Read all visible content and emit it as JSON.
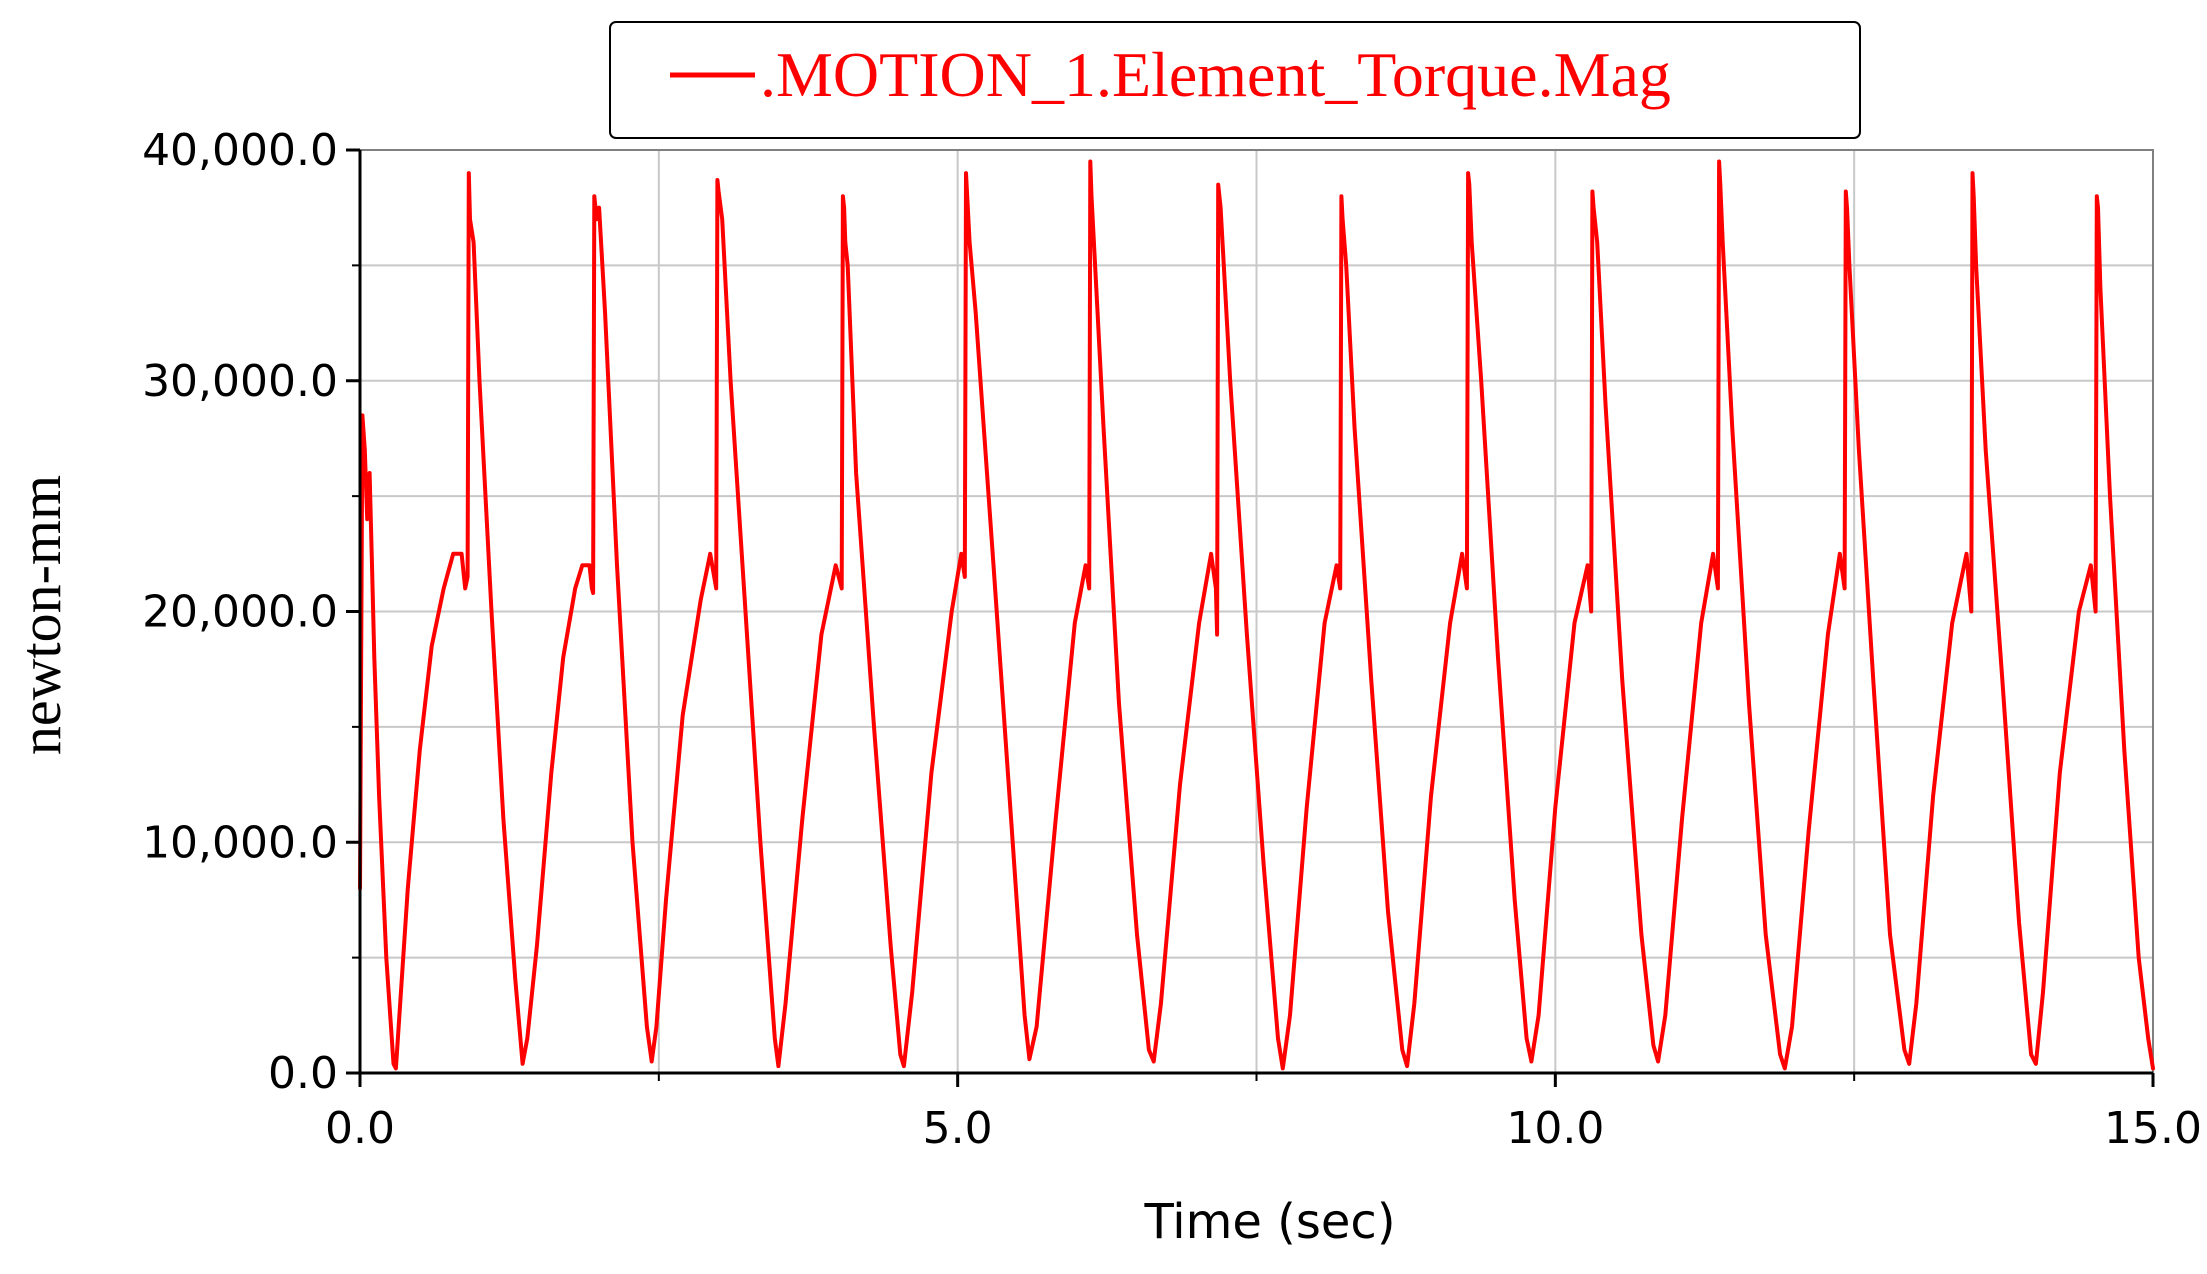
{
  "chart_data": {
    "type": "line",
    "legend": {
      "position": "top",
      "entries": [
        ".MOTION_1.Element_Torque.Mag"
      ]
    },
    "xlabel": "Time (sec)",
    "ylabel": "newton-mm",
    "xlim": [
      0,
      15
    ],
    "ylim": [
      0,
      40000
    ],
    "grid": true,
    "colors": {
      "series": "#ff0000",
      "grid": "#c8c8c8",
      "axis": "#000000"
    },
    "x_ticks": [
      {
        "value": 0,
        "label": "0.0"
      },
      {
        "value": 5,
        "label": "5.0"
      },
      {
        "value": 10,
        "label": "10.0"
      },
      {
        "value": 15,
        "label": "15.0"
      }
    ],
    "x_minor_grid": [
      2.5,
      7.5,
      12.5
    ],
    "y_ticks": [
      {
        "value": 0,
        "label": "0.0"
      },
      {
        "value": 10000,
        "label": "10,000.0"
      },
      {
        "value": 20000,
        "label": "20,000.0"
      },
      {
        "value": 30000,
        "label": "30,000.0"
      },
      {
        "value": 40000,
        "label": "40,000.0"
      }
    ],
    "y_minor_grid": [
      5000,
      15000,
      25000,
      35000
    ],
    "series": [
      {
        "name": ".MOTION_1.Element_Torque.Mag",
        "x": [
          0.0,
          0.02,
          0.04,
          0.06,
          0.08,
          0.1,
          0.12,
          0.16,
          0.22,
          0.28,
          0.3,
          0.33,
          0.4,
          0.5,
          0.6,
          0.7,
          0.78,
          0.85,
          0.88,
          0.9,
          0.91,
          0.92,
          0.95,
          1.0,
          1.1,
          1.2,
          1.3,
          1.36,
          1.4,
          1.48,
          1.6,
          1.7,
          1.8,
          1.86,
          1.92,
          1.94,
          1.95,
          1.96,
          1.98,
          2.0,
          2.05,
          2.15,
          2.28,
          2.4,
          2.44,
          2.48,
          2.56,
          2.7,
          2.85,
          2.93,
          2.98,
          2.99,
          3.0,
          3.03,
          3.1,
          3.2,
          3.35,
          3.47,
          3.5,
          3.56,
          3.7,
          3.86,
          3.98,
          4.03,
          4.04,
          4.05,
          4.06,
          4.08,
          4.15,
          4.3,
          4.44,
          4.52,
          4.55,
          4.62,
          4.78,
          4.95,
          5.03,
          5.06,
          5.07,
          5.08,
          5.1,
          5.15,
          5.3,
          5.46,
          5.56,
          5.6,
          5.66,
          5.82,
          5.98,
          6.07,
          6.1,
          6.11,
          6.12,
          6.15,
          6.22,
          6.35,
          6.5,
          6.6,
          6.64,
          6.7,
          6.86,
          7.02,
          7.12,
          7.16,
          7.17,
          7.18,
          7.2,
          7.28,
          7.42,
          7.56,
          7.68,
          7.72,
          7.78,
          7.92,
          8.07,
          8.17,
          8.2,
          8.21,
          8.22,
          8.25,
          8.32,
          8.46,
          8.6,
          8.72,
          8.76,
          8.82,
          8.96,
          9.12,
          9.22,
          9.26,
          9.27,
          9.28,
          9.3,
          9.38,
          9.52,
          9.66,
          9.76,
          9.8,
          9.86,
          10.0,
          10.16,
          10.27,
          10.3,
          10.31,
          10.32,
          10.35,
          10.42,
          10.56,
          10.72,
          10.82,
          10.86,
          10.92,
          11.06,
          11.22,
          11.32,
          11.36,
          11.37,
          11.38,
          11.4,
          11.48,
          11.62,
          11.76,
          11.88,
          11.92,
          11.98,
          12.12,
          12.28,
          12.38,
          12.42,
          12.43,
          12.44,
          12.46,
          12.54,
          12.66,
          12.8,
          12.92,
          12.96,
          13.02,
          13.16,
          13.32,
          13.44,
          13.48,
          13.49,
          13.5,
          13.52,
          13.6,
          13.74,
          13.88,
          13.98,
          14.02,
          14.08,
          14.22,
          14.38,
          14.48,
          14.52,
          14.53,
          14.54,
          14.56,
          14.64,
          14.76,
          14.88,
          14.96,
          15.0
        ],
        "y": [
          8000,
          28500,
          27000,
          24000,
          26000,
          22000,
          18000,
          12000,
          5000,
          400,
          200,
          2500,
          8000,
          14000,
          18500,
          21000,
          22500,
          22500,
          21000,
          21500,
          39000,
          37000,
          36000,
          30000,
          20000,
          11000,
          4000,
          400,
          1500,
          5500,
          13000,
          18000,
          21000,
          22000,
          22000,
          21000,
          20800,
          38000,
          37000,
          37500,
          33000,
          22000,
          10000,
          2000,
          500,
          2000,
          7500,
          15500,
          20500,
          22500,
          21000,
          38700,
          38200,
          37000,
          30000,
          22000,
          10000,
          1500,
          300,
          3000,
          11000,
          19000,
          22000,
          21000,
          38000,
          37500,
          36000,
          35000,
          26000,
          15000,
          5500,
          800,
          300,
          3500,
          13000,
          20000,
          22500,
          21500,
          39000,
          38000,
          36000,
          33000,
          22000,
          10000,
          2500,
          600,
          2000,
          11000,
          19500,
          22000,
          21000,
          39500,
          38000,
          35000,
          28000,
          16000,
          6000,
          1000,
          500,
          3000,
          12500,
          19500,
          22500,
          21000,
          19000,
          38500,
          37500,
          30000,
          19000,
          9000,
          1500,
          200,
          2500,
          11500,
          19500,
          22000,
          21000,
          38000,
          37000,
          35000,
          28000,
          17000,
          7000,
          1000,
          300,
          3000,
          12000,
          19500,
          22500,
          21000,
          39000,
          38500,
          36000,
          30000,
          18000,
          7500,
          1500,
          500,
          2500,
          11500,
          19500,
          22000,
          20000,
          38200,
          37500,
          36000,
          29000,
          17000,
          6000,
          1200,
          500,
          2500,
          11000,
          19500,
          22500,
          21000,
          39500,
          38500,
          36000,
          28000,
          16000,
          6000,
          800,
          200,
          2000,
          10500,
          19000,
          22500,
          21000,
          38200,
          37500,
          35000,
          27000,
          17000,
          6000,
          1000,
          400,
          3000,
          12000,
          19500,
          22500,
          20000,
          39000,
          38000,
          35000,
          27000,
          17000,
          6500,
          800,
          400,
          3500,
          13000,
          20000,
          22000,
          20000,
          38000,
          37500,
          34000,
          25000,
          14000,
          5000,
          1500,
          200
        ]
      }
    ]
  }
}
